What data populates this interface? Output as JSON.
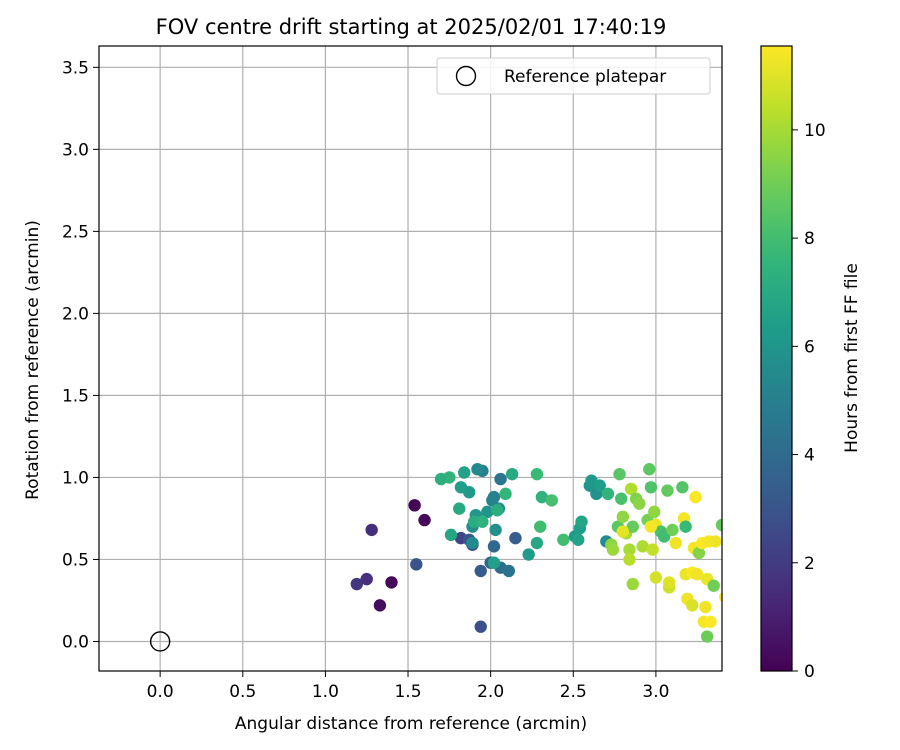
{
  "chart_data": {
    "type": "scatter",
    "title": "FOV centre drift starting at 2025/02/01 17:40:19",
    "xlabel": "Angular distance from reference (arcmin)",
    "ylabel": "Rotation from reference (arcmin)",
    "xlim": [
      -0.37,
      3.4
    ],
    "ylim": [
      -0.18,
      3.63
    ],
    "xticks": [
      0.0,
      0.5,
      1.0,
      1.5,
      2.0,
      2.5,
      3.0
    ],
    "xtick_labels": [
      "0.0",
      "0.5",
      "1.0",
      "1.5",
      "2.0",
      "2.5",
      "3.0"
    ],
    "yticks": [
      0.0,
      0.5,
      1.0,
      1.5,
      2.0,
      2.5,
      3.0,
      3.5
    ],
    "ytick_labels": [
      "0.0",
      "0.5",
      "1.0",
      "1.5",
      "2.0",
      "2.5",
      "3.0",
      "3.5"
    ],
    "grid": true,
    "colormap": "viridis",
    "colorbar": {
      "label": "Hours from first FF file",
      "range": [
        0,
        11.55
      ],
      "ticks": [
        0,
        2,
        4,
        6,
        8,
        10
      ],
      "tick_labels": [
        "0",
        "2",
        "4",
        "6",
        "8",
        "10"
      ]
    },
    "legend": {
      "position": "upper right",
      "entries": [
        "Reference platepar"
      ]
    },
    "reference_point": {
      "x": 0.0,
      "y": 0.0
    },
    "points": [
      [
        1.54,
        0.83,
        0.1
      ],
      [
        1.6,
        0.74,
        0.3
      ],
      [
        1.4,
        0.36,
        0.2
      ],
      [
        1.33,
        0.22,
        0.4
      ],
      [
        1.28,
        0.68,
        1.5
      ],
      [
        1.25,
        0.38,
        1.6
      ],
      [
        1.19,
        0.35,
        1.8
      ],
      [
        1.55,
        0.47,
        3.0
      ],
      [
        1.82,
        0.63,
        2.3
      ],
      [
        1.89,
        0.59,
        2.6
      ],
      [
        1.94,
        0.09,
        2.8
      ],
      [
        1.94,
        0.43,
        3.3
      ],
      [
        1.87,
        0.62,
        3.1
      ],
      [
        2.15,
        0.63,
        3.4
      ],
      [
        2.0,
        0.48,
        3.6
      ],
      [
        2.02,
        0.58,
        3.8
      ],
      [
        2.06,
        0.45,
        4.1
      ],
      [
        2.11,
        0.43,
        4.4
      ],
      [
        2.06,
        0.99,
        4.5
      ],
      [
        1.95,
        1.04,
        5.1
      ],
      [
        1.92,
        1.05,
        5.4
      ],
      [
        2.02,
        0.88,
        5.0
      ],
      [
        2.01,
        0.86,
        5.2
      ],
      [
        2.05,
        0.81,
        5.6
      ],
      [
        2.03,
        0.68,
        5.8
      ],
      [
        1.89,
        0.6,
        5.5
      ],
      [
        1.89,
        0.7,
        5.7
      ],
      [
        1.91,
        0.77,
        6.1
      ],
      [
        1.98,
        0.79,
        6.0
      ],
      [
        1.87,
        0.91,
        6.2
      ],
      [
        1.82,
        0.94,
        6.4
      ],
      [
        1.84,
        1.03,
        6.6
      ],
      [
        1.75,
        1.0,
        7.5
      ],
      [
        1.7,
        0.99,
        7.3
      ],
      [
        1.76,
        0.65,
        6.8
      ],
      [
        1.81,
        0.81,
        7.0
      ],
      [
        1.9,
        0.73,
        7.1
      ],
      [
        1.95,
        0.73,
        7.4
      ],
      [
        2.04,
        0.8,
        7.2
      ],
      [
        2.09,
        0.9,
        7.6
      ],
      [
        2.13,
        1.02,
        7.0
      ],
      [
        2.02,
        0.48,
        6.5
      ],
      [
        2.23,
        0.53,
        6.3
      ],
      [
        2.28,
        0.6,
        6.9
      ],
      [
        2.28,
        1.02,
        7.8
      ],
      [
        2.31,
        0.88,
        7.4
      ],
      [
        2.3,
        0.7,
        8.0
      ],
      [
        2.37,
        0.86,
        8.1
      ],
      [
        2.44,
        0.62,
        8.0
      ],
      [
        2.51,
        0.64,
        6.2
      ],
      [
        2.54,
        0.69,
        6.4
      ],
      [
        2.55,
        0.73,
        6.8
      ],
      [
        2.53,
        0.62,
        6.6
      ],
      [
        2.6,
        0.95,
        6.0
      ],
      [
        2.61,
        0.98,
        6.2
      ],
      [
        2.64,
        0.9,
        5.8
      ],
      [
        2.66,
        0.95,
        6.4
      ],
      [
        2.7,
        0.61,
        5.5
      ],
      [
        2.71,
        0.9,
        7.5
      ],
      [
        2.73,
        0.59,
        9.5
      ],
      [
        2.74,
        0.56,
        9.8
      ],
      [
        2.77,
        0.7,
        8.5
      ],
      [
        2.79,
        0.87,
        8.2
      ],
      [
        2.78,
        1.02,
        8.5
      ],
      [
        2.8,
        0.76,
        9.6
      ],
      [
        2.82,
        0.66,
        9.9
      ],
      [
        2.84,
        0.56,
        10.0
      ],
      [
        2.84,
        0.5,
        10.3
      ],
      [
        2.85,
        0.93,
        10.2
      ],
      [
        2.86,
        0.35,
        9.8
      ],
      [
        2.86,
        0.7,
        8.8
      ],
      [
        2.88,
        0.87,
        9.3
      ],
      [
        2.9,
        0.84,
        9.5
      ],
      [
        2.92,
        0.58,
        10.1
      ],
      [
        2.95,
        0.74,
        9.1
      ],
      [
        2.96,
        1.05,
        8.6
      ],
      [
        2.97,
        0.94,
        8.3
      ],
      [
        2.98,
        0.56,
        10.5
      ],
      [
        2.99,
        0.79,
        9.6
      ],
      [
        3.0,
        0.39,
        10.8
      ],
      [
        3.0,
        0.71,
        11.2
      ],
      [
        3.03,
        0.67,
        8.2
      ],
      [
        3.05,
        0.64,
        8.0
      ],
      [
        3.07,
        0.92,
        8.7
      ],
      [
        3.08,
        0.33,
        10.7
      ],
      [
        3.08,
        0.36,
        11.0
      ],
      [
        3.1,
        0.68,
        9.0
      ],
      [
        3.12,
        0.6,
        11.3
      ],
      [
        3.16,
        0.94,
        8.4
      ],
      [
        3.17,
        0.75,
        11.4
      ],
      [
        3.18,
        0.41,
        11.2
      ],
      [
        3.18,
        0.7,
        7.8
      ],
      [
        3.19,
        0.26,
        11.3
      ],
      [
        3.22,
        0.22,
        10.9
      ],
      [
        3.22,
        0.42,
        11.5
      ],
      [
        3.23,
        0.57,
        11.4
      ],
      [
        3.24,
        0.88,
        11.5
      ],
      [
        3.25,
        0.41,
        11.3
      ],
      [
        3.26,
        0.54,
        9.4
      ],
      [
        3.28,
        0.6,
        11.5
      ],
      [
        3.29,
        0.12,
        11.4
      ],
      [
        3.3,
        0.21,
        11.3
      ],
      [
        3.31,
        0.38,
        11.2
      ],
      [
        3.31,
        0.03,
        8.9
      ],
      [
        3.32,
        0.61,
        11.4
      ],
      [
        3.33,
        0.12,
        11.5
      ],
      [
        3.35,
        0.34,
        9.0
      ],
      [
        3.36,
        0.61,
        11.3
      ],
      [
        3.4,
        0.71,
        8.8
      ],
      [
        3.42,
        0.27,
        11.5
      ],
      [
        2.97,
        0.7,
        11.4
      ],
      [
        2.8,
        0.67,
        11.1
      ]
    ]
  }
}
